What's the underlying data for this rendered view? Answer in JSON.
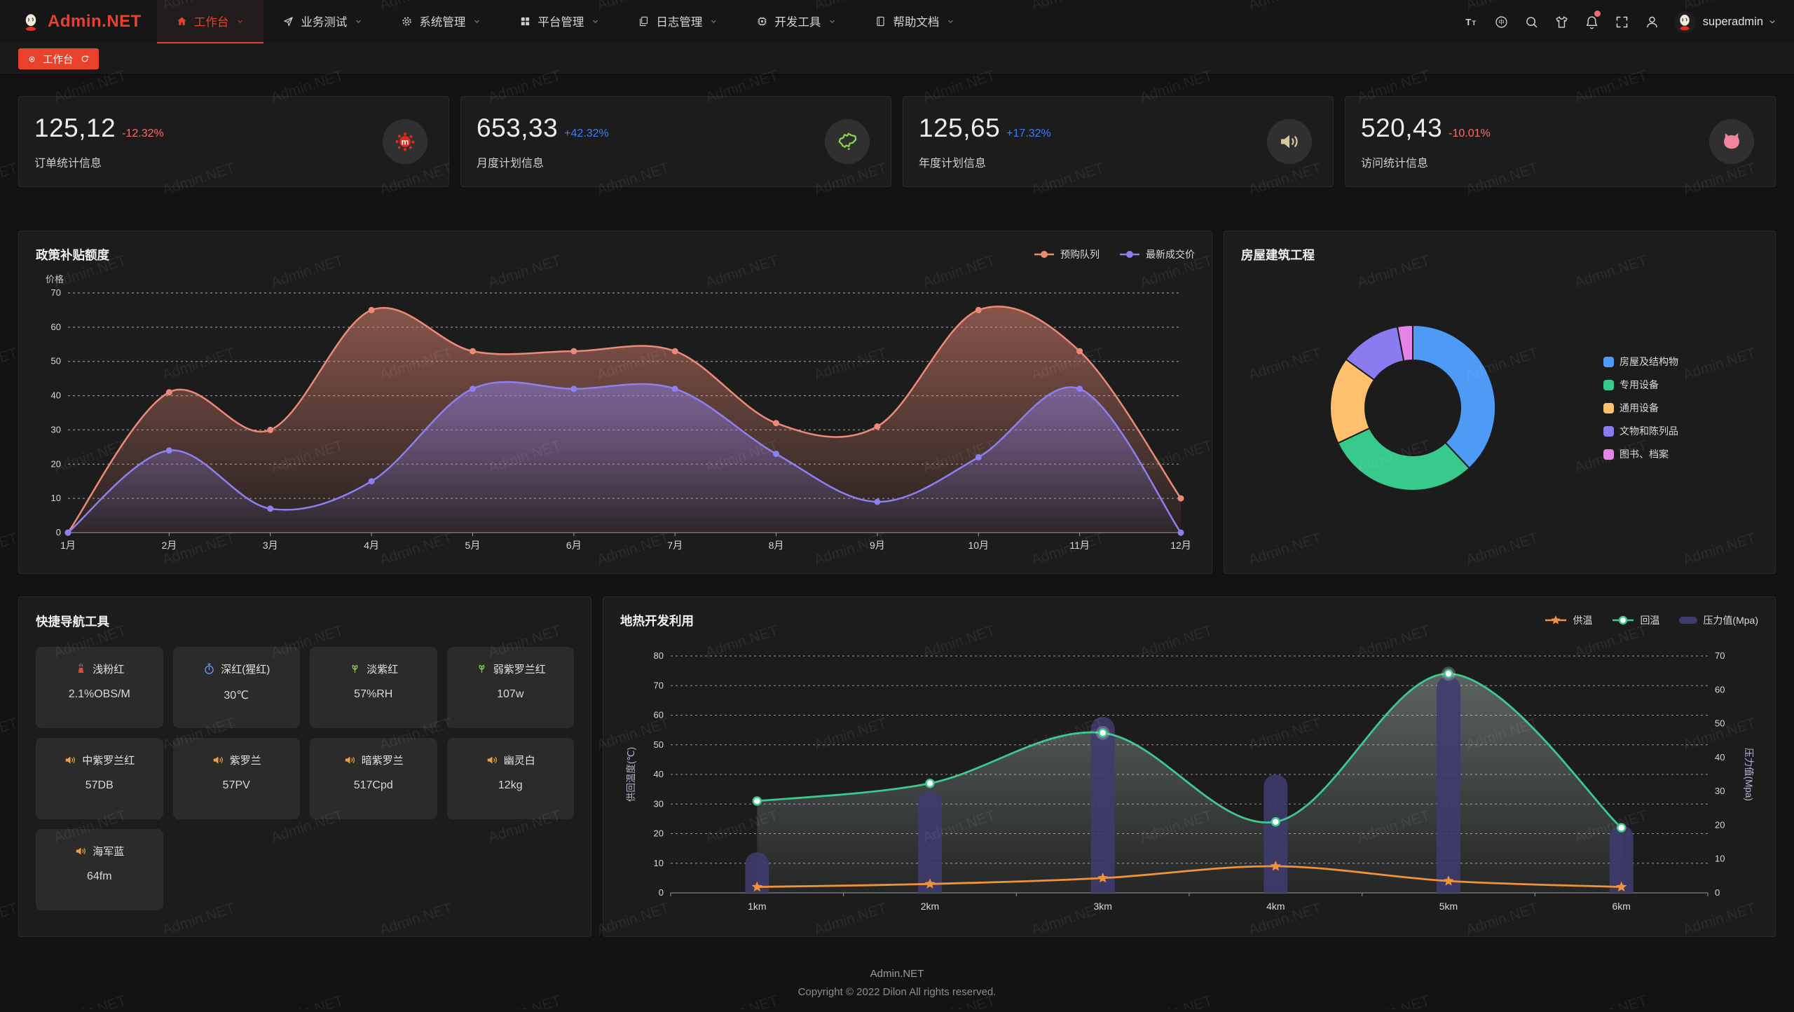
{
  "navbar": {
    "brand": "Admin.NET",
    "items": [
      {
        "label": "工作台",
        "icon": "home-icon",
        "active": true
      },
      {
        "label": "业务测试",
        "icon": "send-icon",
        "active": false
      },
      {
        "label": "系统管理",
        "icon": "gear-icon",
        "active": false
      },
      {
        "label": "平台管理",
        "icon": "grid-icon",
        "active": false
      },
      {
        "label": "日志管理",
        "icon": "copy-icon",
        "active": false
      },
      {
        "label": "开发工具",
        "icon": "cpu-icon",
        "active": false
      },
      {
        "label": "帮助文档",
        "icon": "book-icon",
        "active": false
      }
    ],
    "toolbar": [
      "font-size-icon",
      "language-icon",
      "search-icon",
      "theme-icon",
      "bell-icon",
      "fullscreen-icon",
      "user-icon"
    ],
    "notification_badge": true,
    "username": "superadmin"
  },
  "tabbar": {
    "tabs": [
      {
        "label": "工作台",
        "active": true
      }
    ]
  },
  "stat_cards": [
    {
      "value": "125,12",
      "delta": "-12.32%",
      "direction": "down",
      "label": "订单统计信息",
      "icon": "splash-icon",
      "icon_color": "#e0281b"
    },
    {
      "value": "653,33",
      "delta": "+42.32%",
      "direction": "up",
      "label": "月度计划信息",
      "icon": "china-map-icon",
      "icon_color": "#8ad44f"
    },
    {
      "value": "125,65",
      "delta": "+17.32%",
      "direction": "up",
      "label": "年度计划信息",
      "icon": "speaker-icon",
      "icon_color": "#d9c79b"
    },
    {
      "value": "520,43",
      "delta": "-10.01%",
      "direction": "down",
      "label": "访问统计信息",
      "icon": "cat-icon",
      "icon_color": "#f2849e"
    }
  ],
  "colors": {
    "accent_red": "#e8412c",
    "delta_down": "#f56c6c",
    "delta_up": "#3d7ef5"
  },
  "chart_data": [
    {
      "id": "subsidy",
      "type": "area",
      "title": "政策补贴额度",
      "ylabel": "价格",
      "ylim": [
        0,
        70
      ],
      "y_ticks": [
        0,
        10,
        20,
        30,
        40,
        50,
        60,
        70
      ],
      "categories": [
        "1月",
        "2月",
        "3月",
        "4月",
        "5月",
        "6月",
        "7月",
        "8月",
        "9月",
        "10月",
        "11月",
        "12月"
      ],
      "series": [
        {
          "name": "预购队列",
          "color": "#ec8a75",
          "values": [
            0,
            41,
            30,
            65,
            53,
            53,
            53,
            32,
            31,
            65,
            53,
            10
          ]
        },
        {
          "name": "最新成交价",
          "color": "#8d7fee",
          "values": [
            0,
            24,
            7,
            15,
            42,
            42,
            42,
            23,
            9,
            22,
            42,
            0
          ]
        }
      ],
      "legend_position": "top-right",
      "grid": "dashed"
    },
    {
      "id": "construction",
      "type": "pie",
      "title": "房屋建筑工程",
      "slices": [
        {
          "label": "房屋及结构物",
          "value": 38,
          "color": "#4e9bf5"
        },
        {
          "label": "专用设备",
          "value": 30,
          "color": "#38c98c"
        },
        {
          "label": "通用设备",
          "value": 17,
          "color": "#ffc06e"
        },
        {
          "label": "文物和陈列品",
          "value": 12,
          "color": "#8a7cf0"
        },
        {
          "label": "图书、档案",
          "value": 3,
          "color": "#e583e6"
        }
      ],
      "inner_radius_ratio": 0.58,
      "legend_position": "right"
    },
    {
      "id": "geothermal",
      "type": "mixed-line-bar",
      "title": "地热开发利用",
      "categories": [
        "1km",
        "2km",
        "3km",
        "4km",
        "5km",
        "6km"
      ],
      "ylabel_left": "供回温度(℃)",
      "ylim_left": [
        0,
        80
      ],
      "y_ticks_left": [
        0,
        10,
        20,
        30,
        40,
        50,
        60,
        70,
        80
      ],
      "ylabel_right": "压力值(Mpa)",
      "ylim_right": [
        0,
        70
      ],
      "y_ticks_right": [
        0,
        10,
        20,
        30,
        40,
        50,
        60,
        70
      ],
      "series": [
        {
          "name": "供温",
          "type": "line",
          "marker": "star",
          "axis": "left",
          "color": "#f0913c",
          "values": [
            2,
            3,
            5,
            9,
            4,
            2
          ]
        },
        {
          "name": "回温",
          "type": "line",
          "marker": "circle",
          "axis": "left",
          "color": "#3fc88e",
          "area": true,
          "values": [
            31,
            37,
            54,
            24,
            74,
            22
          ]
        },
        {
          "name": "压力值(Mpa)",
          "type": "bar",
          "axis": "right",
          "color": "#3f3b6e",
          "values": [
            12,
            30,
            52,
            35,
            64,
            20
          ]
        }
      ],
      "legend_position": "top-right",
      "grid": "dashed"
    }
  ],
  "quick_nav": {
    "title": "快捷导航工具",
    "items": [
      {
        "label": "浅粉红",
        "value": "2.1%OBS/M",
        "icon": "brazier-icon",
        "icon_color": "#e04a3a"
      },
      {
        "label": "深红(猩红)",
        "value": "30℃",
        "icon": "stopwatch-icon",
        "icon_color": "#6d9ef7"
      },
      {
        "label": "淡紫红",
        "value": "57%RH",
        "icon": "leaves-icon",
        "icon_color": "#8ad44f"
      },
      {
        "label": "弱紫罗兰红",
        "value": "107w",
        "icon": "leaves-icon",
        "icon_color": "#8ad44f"
      },
      {
        "label": "中紫罗兰红",
        "value": "57DB",
        "icon": "speaker-icon",
        "icon_color": "#e8a23e"
      },
      {
        "label": "紫罗兰",
        "value": "57PV",
        "icon": "speaker-icon",
        "icon_color": "#e8a23e"
      },
      {
        "label": "暗紫罗兰",
        "value": "517Cpd",
        "icon": "speaker-icon",
        "icon_color": "#e8a23e"
      },
      {
        "label": "幽灵白",
        "value": "12kg",
        "icon": "speaker-icon",
        "icon_color": "#e8a23e"
      },
      {
        "label": "海军蓝",
        "value": "64fm",
        "icon": "speaker-icon",
        "icon_color": "#e8a23e"
      }
    ]
  },
  "footer": {
    "brand": "Admin.NET",
    "copyright": "Copyright © 2022 Dilon All rights reserved."
  },
  "watermark": "Admin.NET"
}
